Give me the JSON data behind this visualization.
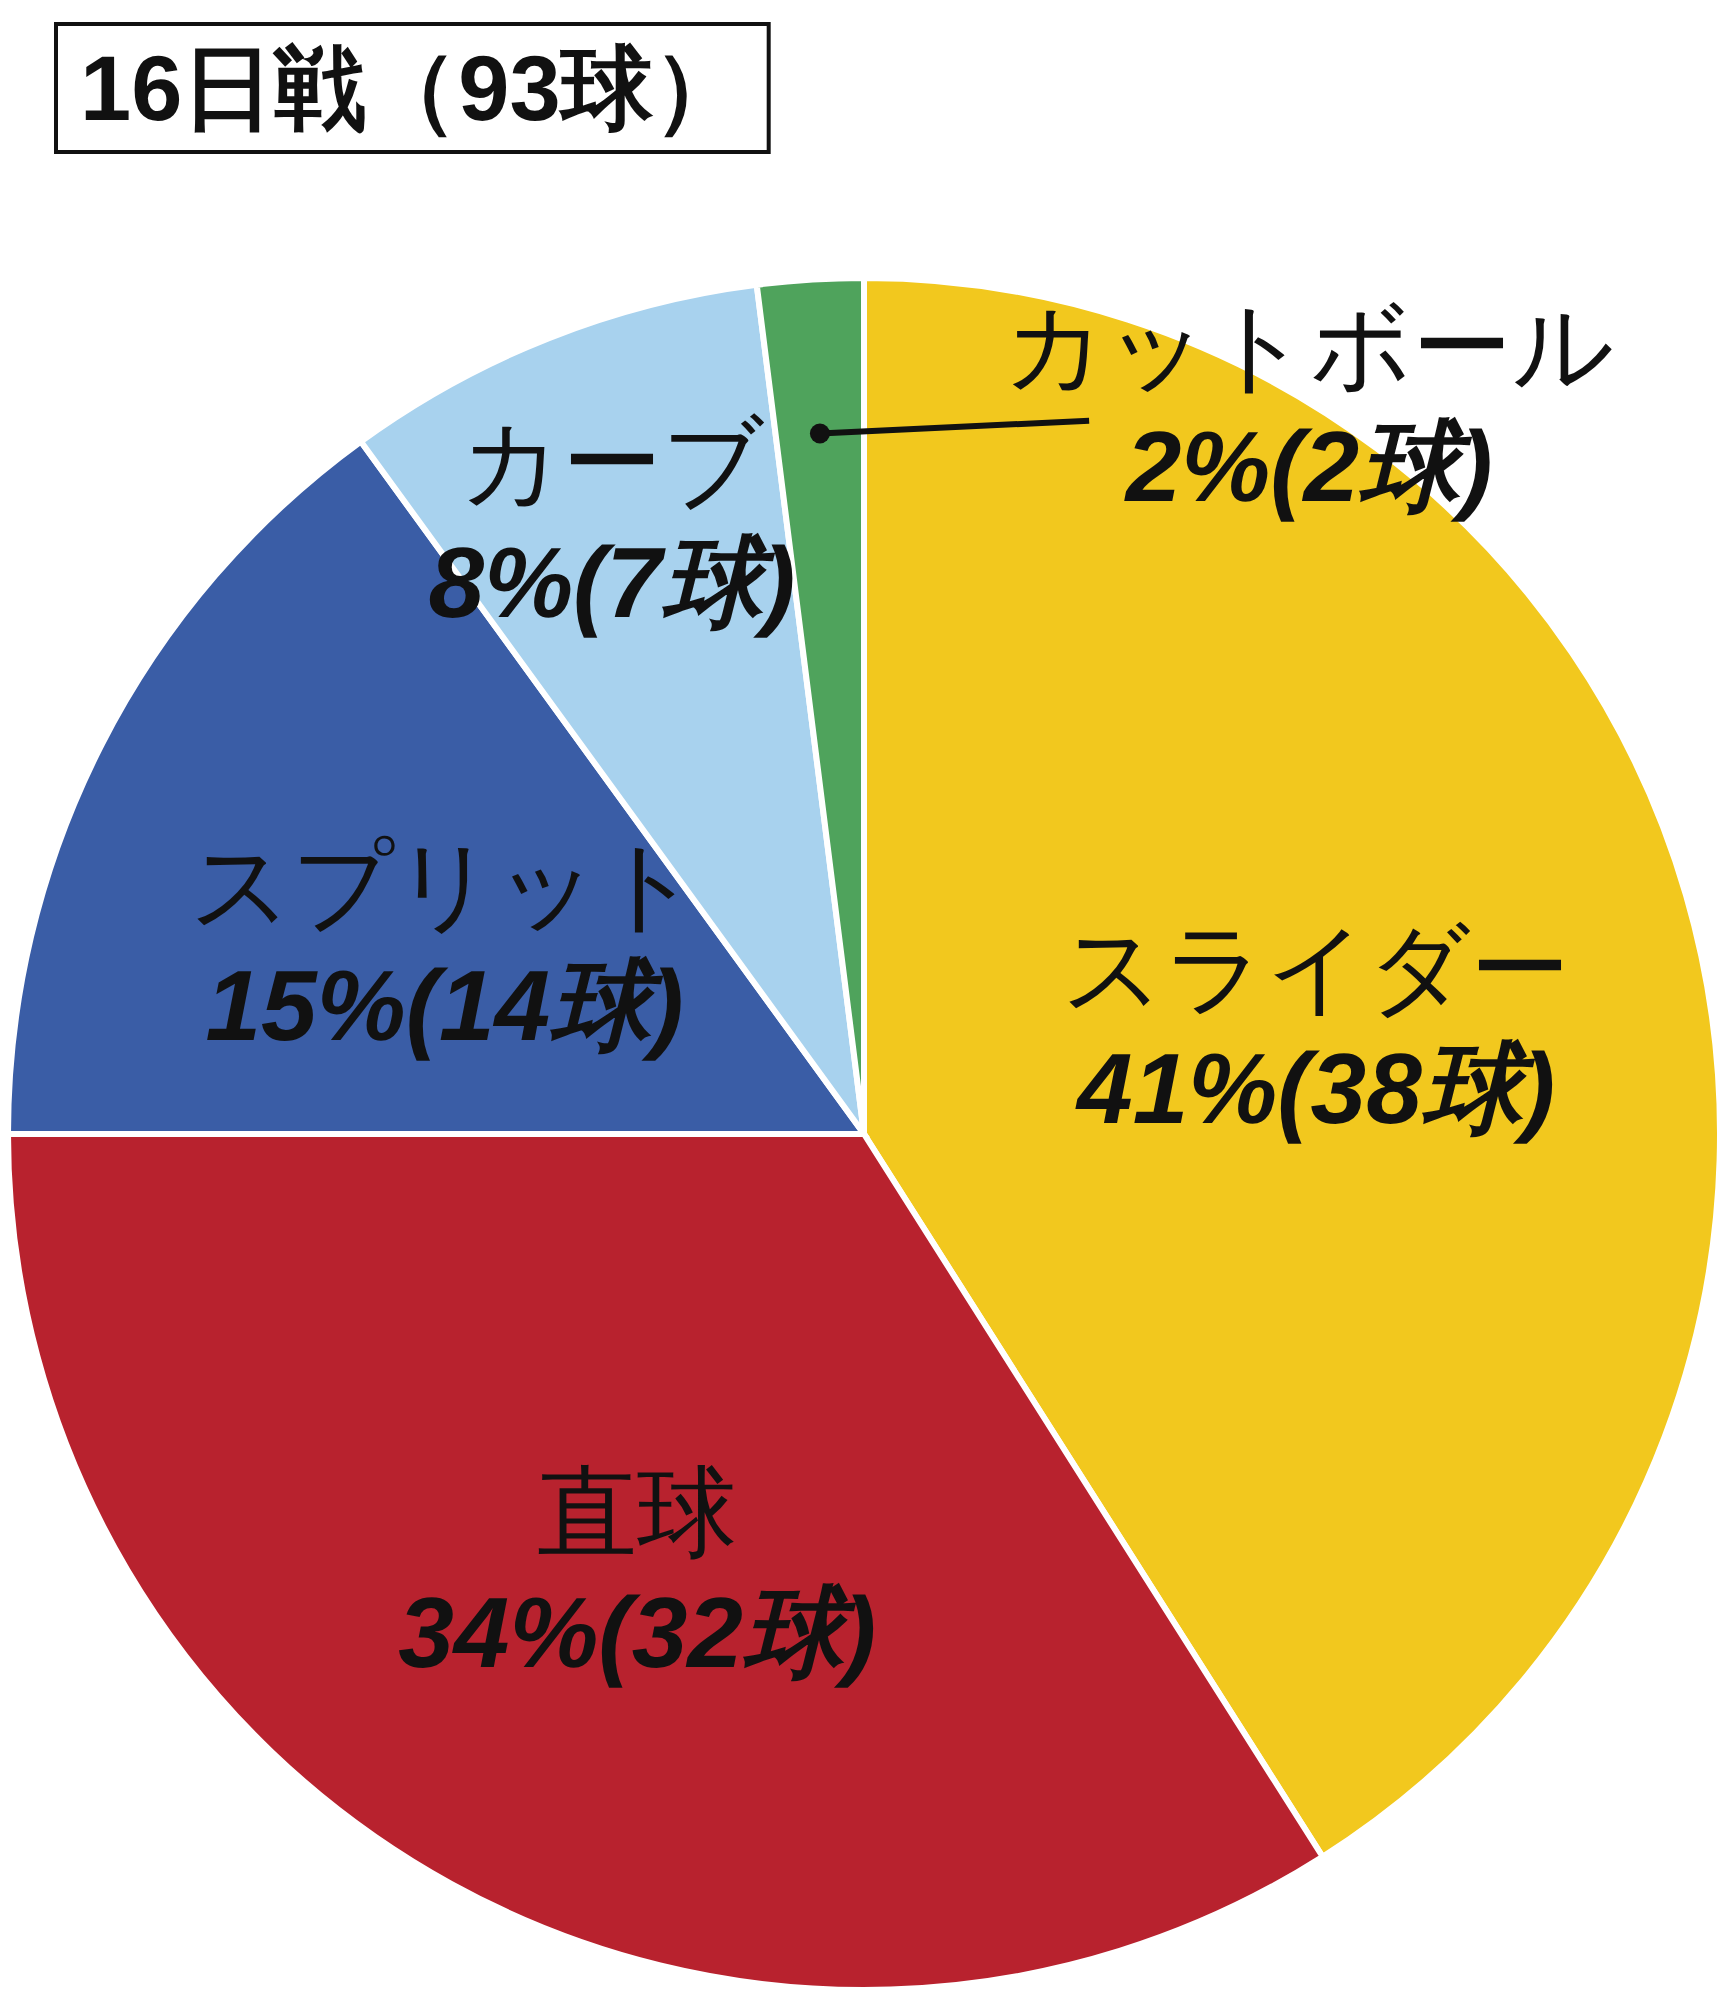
{
  "chart_data": {
    "type": "pie",
    "title": "16日戦（93球）",
    "categories": [
      "スライダー",
      "直球",
      "スプリット",
      "カーブ",
      "カットボール"
    ],
    "values": [
      41,
      34,
      15,
      8,
      2
    ],
    "colors": [
      "#f2c81e",
      "#b8222e",
      "#3a5da6",
      "#a8d2ee",
      "#4fa35c"
    ],
    "value_labels": [
      "41%(38球)",
      "34%(32球)",
      "15%(14球)",
      "8%(7球)",
      "2%(2球)"
    ]
  }
}
